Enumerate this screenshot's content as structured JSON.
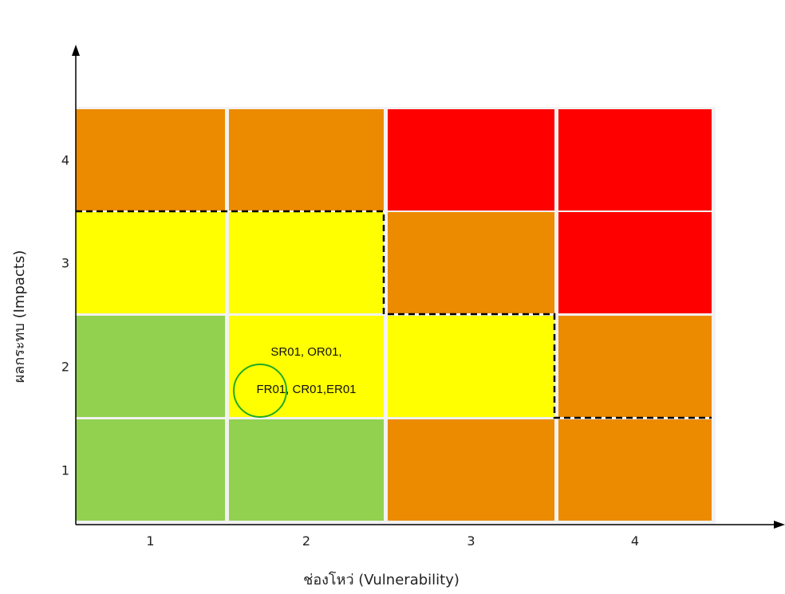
{
  "chart_data": {
    "type": "heatmap",
    "xlabel": "ช่องโหว่ (Vulnerability)",
    "ylabel": "ผลกระทบ (Impacts)",
    "x_categories": [
      "1",
      "2",
      "3",
      "4"
    ],
    "y_categories": [
      "1",
      "2",
      "3",
      "4"
    ],
    "level_colors": {
      "low": "#92d050",
      "medium": "#ffff00",
      "high": "#ec8a00",
      "very_high": "#ff0000"
    },
    "cells": [
      {
        "x": 1,
        "y": 4,
        "level": "high"
      },
      {
        "x": 2,
        "y": 4,
        "level": "high"
      },
      {
        "x": 3,
        "y": 4,
        "level": "very_high"
      },
      {
        "x": 4,
        "y": 4,
        "level": "very_high"
      },
      {
        "x": 1,
        "y": 3,
        "level": "medium"
      },
      {
        "x": 2,
        "y": 3,
        "level": "medium"
      },
      {
        "x": 3,
        "y": 3,
        "level": "high"
      },
      {
        "x": 4,
        "y": 3,
        "level": "very_high"
      },
      {
        "x": 1,
        "y": 2,
        "level": "low"
      },
      {
        "x": 2,
        "y": 2,
        "level": "medium"
      },
      {
        "x": 3,
        "y": 2,
        "level": "medium"
      },
      {
        "x": 4,
        "y": 2,
        "level": "high"
      },
      {
        "x": 1,
        "y": 1,
        "level": "low"
      },
      {
        "x": 2,
        "y": 1,
        "level": "low"
      },
      {
        "x": 3,
        "y": 1,
        "level": "high"
      },
      {
        "x": 4,
        "y": 1,
        "level": "high"
      }
    ],
    "annotations": [
      {
        "x": 2,
        "y": 2,
        "lines": [
          "SR01, OR01,",
          "FR01, CR01,ER01"
        ],
        "circled": "FR01,",
        "circle_color": "#22aa22"
      }
    ],
    "boundary_line": {
      "style": "dashed",
      "color": "#000000"
    },
    "grid": true
  }
}
